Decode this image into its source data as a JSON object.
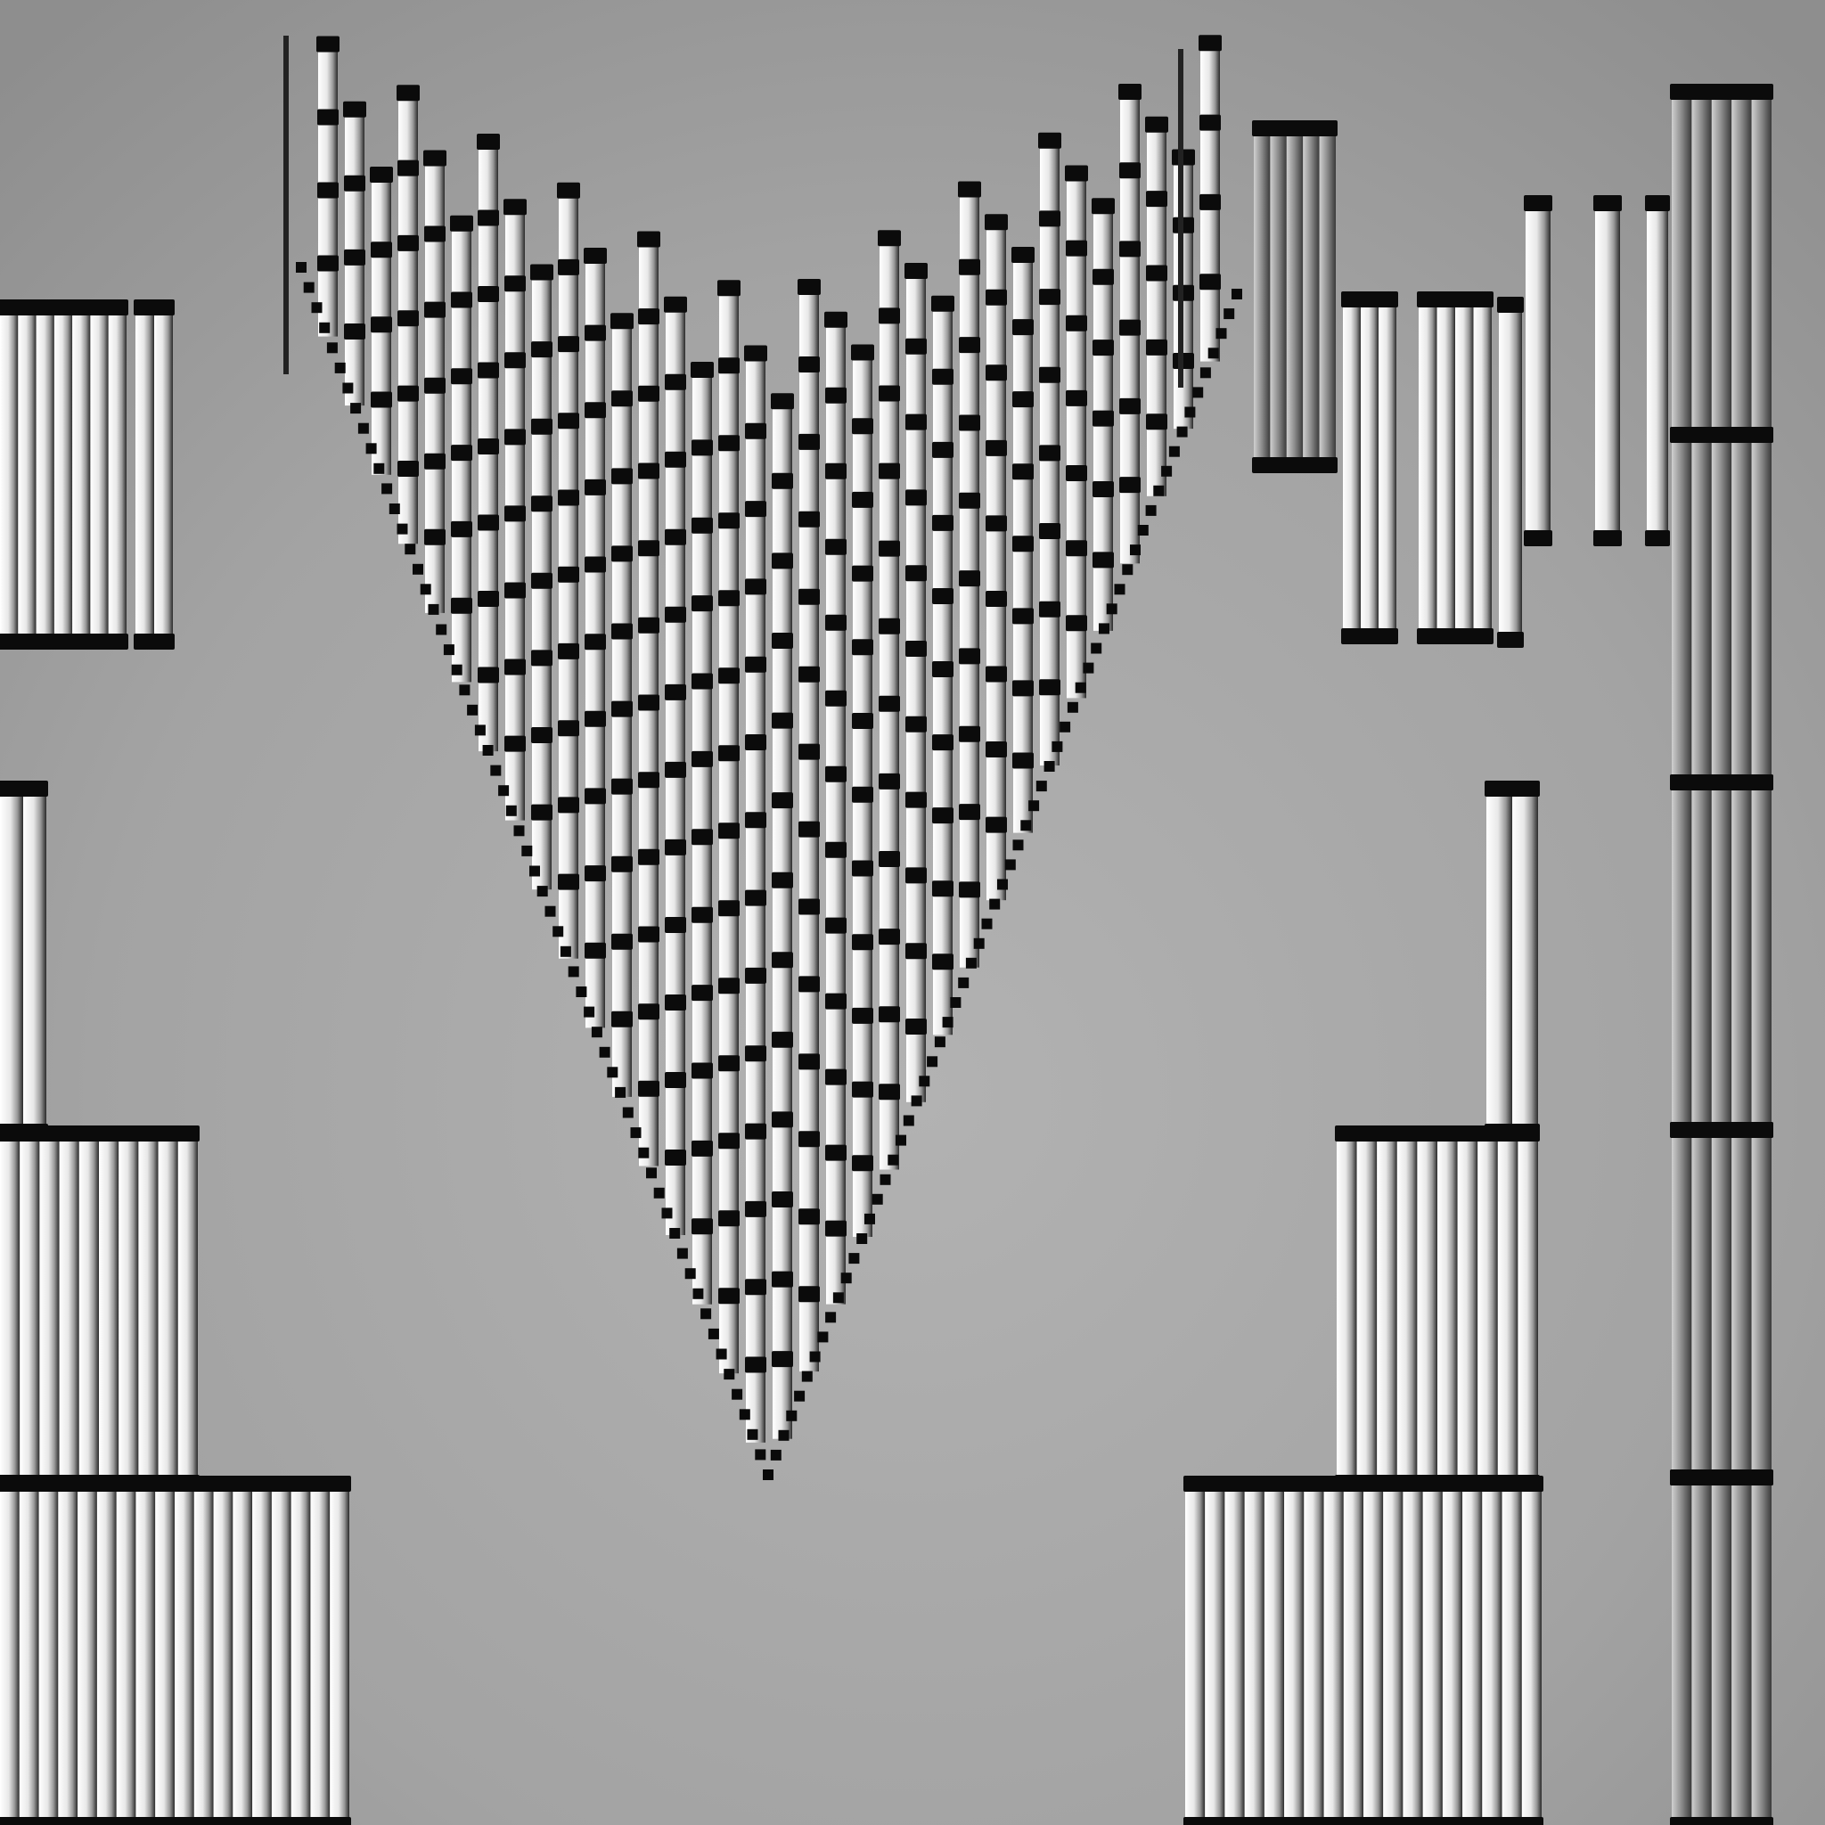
{
  "scene": {
    "description_visible_text": "",
    "palette": {
      "background": "#9c9c9c",
      "background_light": "#b4b4b4",
      "bar_light": "#f6f6f6",
      "bar_dark": "#6e6e6e",
      "cap": "#0a0a0a",
      "outline": "#111111"
    },
    "elements": [
      "v-formation-of-columns",
      "left-upper-column-block",
      "left-middle-column-block",
      "left-lower-column-block",
      "left-bottom-column-block",
      "right-upper-column-block",
      "right-middle-column-blocks",
      "right-tall-column-stack",
      "right-bottom-column-block"
    ]
  }
}
